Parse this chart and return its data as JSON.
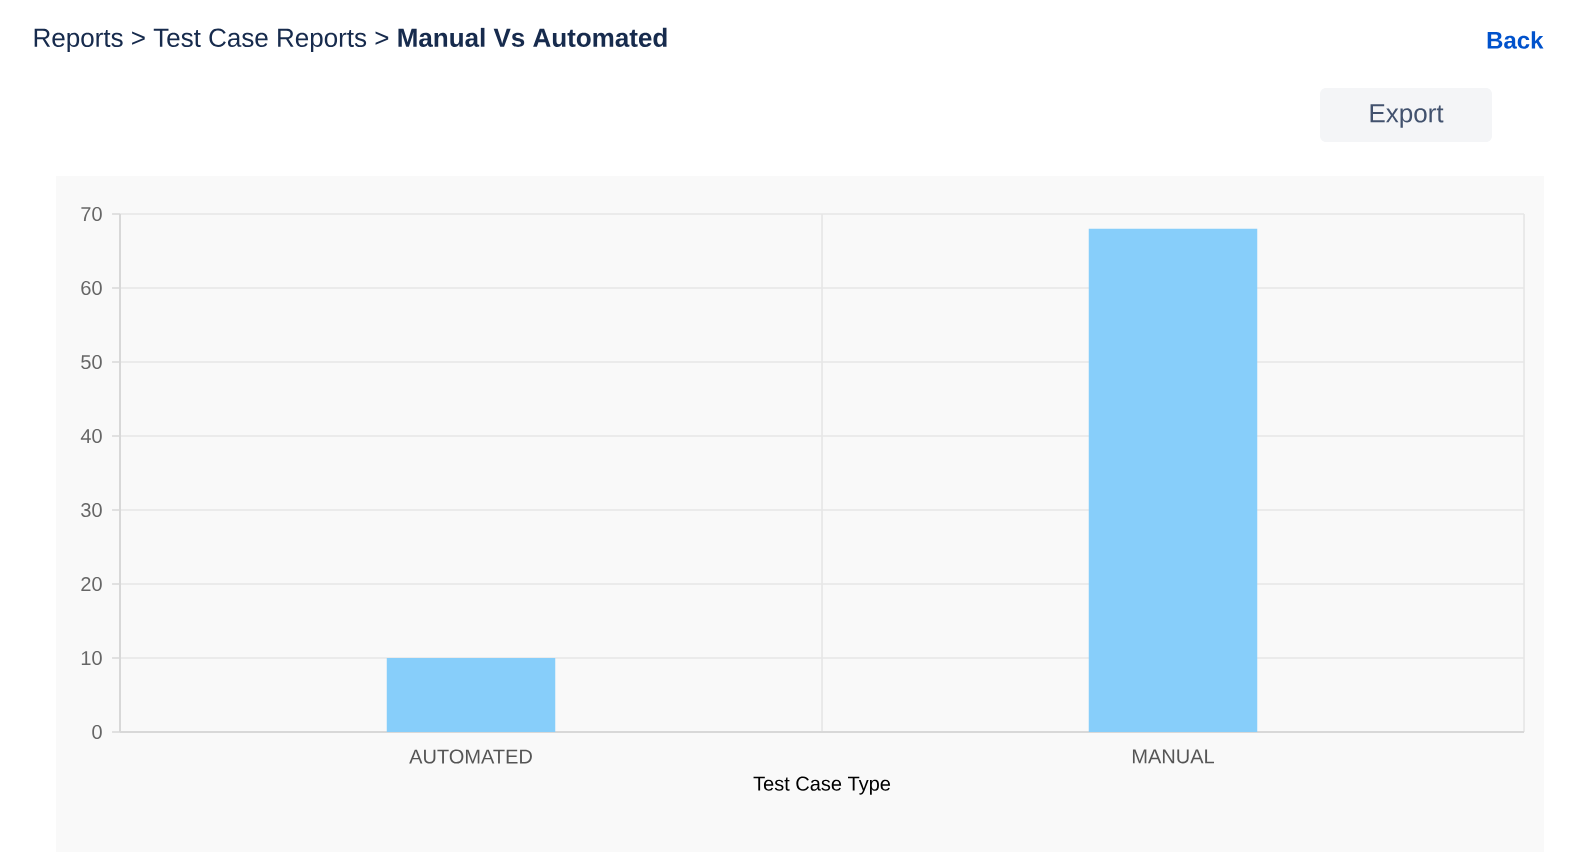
{
  "chart_data": {
    "type": "bar",
    "title": "Reports > Test Case Reports > **Manual Vs Automated**",
    "xlabel": "Test Case Type",
    "categories": [
      "AUTOMATED",
      "MANUAL"
    ],
    "values": [
      10,
      68
    ],
    "color": "#87cefa",
    "ylim": [
      0,
      70
    ],
    "yticks": [
      0,
      10,
      20,
      30,
      40,
      50,
      60,
      70
    ],
    "grid": true,
    "annotations": [
      "Back",
      "Export"
    ]
  }
}
